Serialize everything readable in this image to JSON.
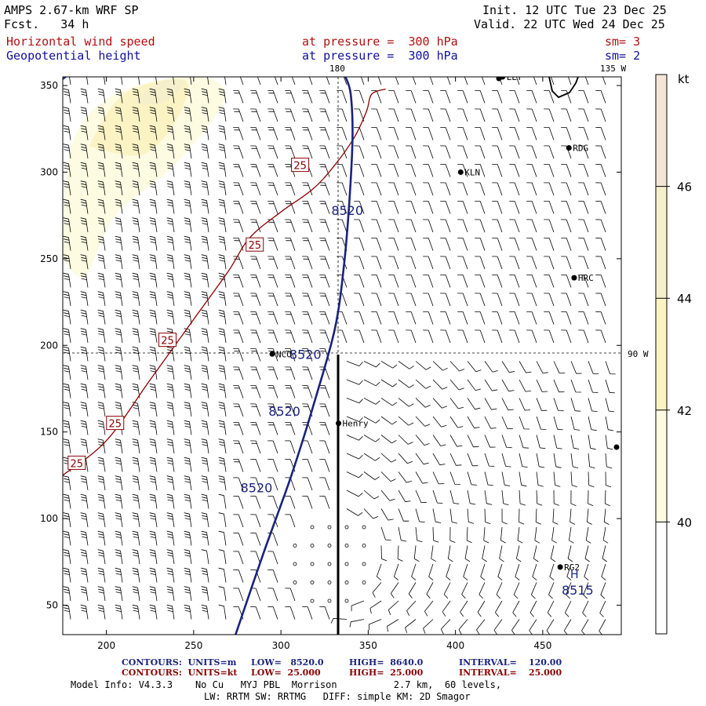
{
  "header": {
    "model": "AMPS 2.67-km WRF SP",
    "forecast": "Fcst.   34 h",
    "init": "Init. 12 UTC Tue 23 Dec 25",
    "valid": "Valid. 22 UTC Wed 24 Dec 25",
    "field1_name": "Horizontal wind speed",
    "field1_level": "at pressure =  300 hPa",
    "field1_sm": "sm= 3",
    "field2_name": "Geopotential height",
    "field2_level": "at pressure =  300 hPa",
    "field2_sm": "sm= 2"
  },
  "footer": {
    "c1_label": "CONTOURS:  UNITS=m",
    "c1_low": "LOW=   8520.0",
    "c1_high": "HIGH=  8640.0",
    "c1_interval": "INTERVAL=    120.00",
    "c2_label": "CONTOURS:  UNITS=kt",
    "c2_low": "LOW=  25.000",
    "c2_high": "HIGH=  25.000",
    "c2_interval": "INTERVAL=    25.000",
    "info1": "Model Info: V4.3.3    No Cu   MYJ PBL  Morrison          2.7 km,  60 levels,",
    "info2": "LW: RRTM SW: RRTMG   DIFF: simple KM: 2D Smagor"
  },
  "map_labels": {
    "lon_180": "180",
    "lon_135w": "135 W",
    "lon_90w": "90 W",
    "stations": [
      {
        "name": "NCO",
        "x": 295,
        "y": 195
      },
      {
        "name": "Henry",
        "x": 333,
        "y": 155
      },
      {
        "name": "KLN",
        "x": 403,
        "y": 300
      },
      {
        "name": "RDG",
        "x": 465,
        "y": 314
      },
      {
        "name": "HRC",
        "x": 468,
        "y": 239
      },
      {
        "name": "RG2",
        "x": 460,
        "y": 72
      },
      {
        "name": "LLT",
        "x": 427,
        "y": 355
      }
    ],
    "high_marker": "H",
    "high_value": "8515"
  },
  "colors": {
    "height_contour": "#1a237e",
    "speed_contour": "#8b0000",
    "wind_barb": "#000000",
    "speed_fill_40_42": "#fdfbe2",
    "speed_fill_42_44": "#fbf3c4",
    "speed_fill_44_46": "#f6efcc",
    "speed_fill_46_48": "#f3e6d8"
  },
  "chart_data": {
    "type": "contour-map",
    "x_ticks": [
      "200",
      "250",
      "300",
      "350",
      "400",
      "450"
    ],
    "y_ticks": [
      "50",
      "100",
      "150",
      "200",
      "250",
      "300",
      "350"
    ],
    "xlim": [
      175,
      495
    ],
    "ylim": [
      33,
      355
    ],
    "height_contours": [
      {
        "value": "8520",
        "points": [
          [
            274,
            33
          ],
          [
            290,
            80
          ],
          [
            306,
            125
          ],
          [
            320,
            170
          ],
          [
            331,
            210
          ],
          [
            336,
            245
          ],
          [
            339,
            280
          ],
          [
            341,
            320
          ],
          [
            340,
            345
          ],
          [
            337,
            355
          ]
        ]
      }
    ],
    "height_contour_labels": [
      {
        "text": "8520",
        "x": 338,
        "y": 278
      },
      {
        "text": "8520",
        "x": 314,
        "y": 195
      },
      {
        "text": "8520",
        "x": 302,
        "y": 162
      },
      {
        "text": "8520",
        "x": 286,
        "y": 118
      }
    ],
    "speed_contours": [
      {
        "value": "25",
        "points": [
          [
            175,
            125
          ],
          [
            200,
            145
          ],
          [
            225,
            180
          ],
          [
            250,
            215
          ],
          [
            270,
            243
          ],
          [
            282,
            262
          ],
          [
            300,
            277
          ],
          [
            318,
            290
          ],
          [
            330,
            303
          ],
          [
            342,
            320
          ],
          [
            349,
            335
          ],
          [
            352,
            345
          ],
          [
            360,
            348
          ]
        ]
      }
    ],
    "speed_contour_labels": [
      {
        "text": "25",
        "x": 183,
        "y": 132
      },
      {
        "text": "25",
        "x": 205,
        "y": 155
      },
      {
        "text": "25",
        "x": 235,
        "y": 203
      },
      {
        "text": "25",
        "x": 285,
        "y": 258
      },
      {
        "text": "25",
        "x": 311,
        "y": 304
      }
    ],
    "fill_regions": [
      {
        "band": "40-42",
        "points": [
          [
            175,
            250
          ],
          [
            180,
            315
          ],
          [
            205,
            345
          ],
          [
            250,
            355
          ],
          [
            268,
            343
          ],
          [
            240,
            305
          ],
          [
            205,
            275
          ],
          [
            188,
            240
          ]
        ]
      },
      {
        "band": "42-44",
        "points": [
          [
            190,
            315
          ],
          [
            210,
            345
          ],
          [
            245,
            353
          ],
          [
            240,
            330
          ],
          [
            220,
            310
          ]
        ]
      },
      {
        "band": "44-46",
        "points": [
          [
            215,
            340
          ],
          [
            230,
            352
          ],
          [
            245,
            352
          ],
          [
            232,
            340
          ]
        ]
      }
    ],
    "colorbar": {
      "unit": "kt",
      "ticks": [
        "40",
        "42",
        "44",
        "46"
      ],
      "range": [
        38,
        48
      ]
    }
  }
}
